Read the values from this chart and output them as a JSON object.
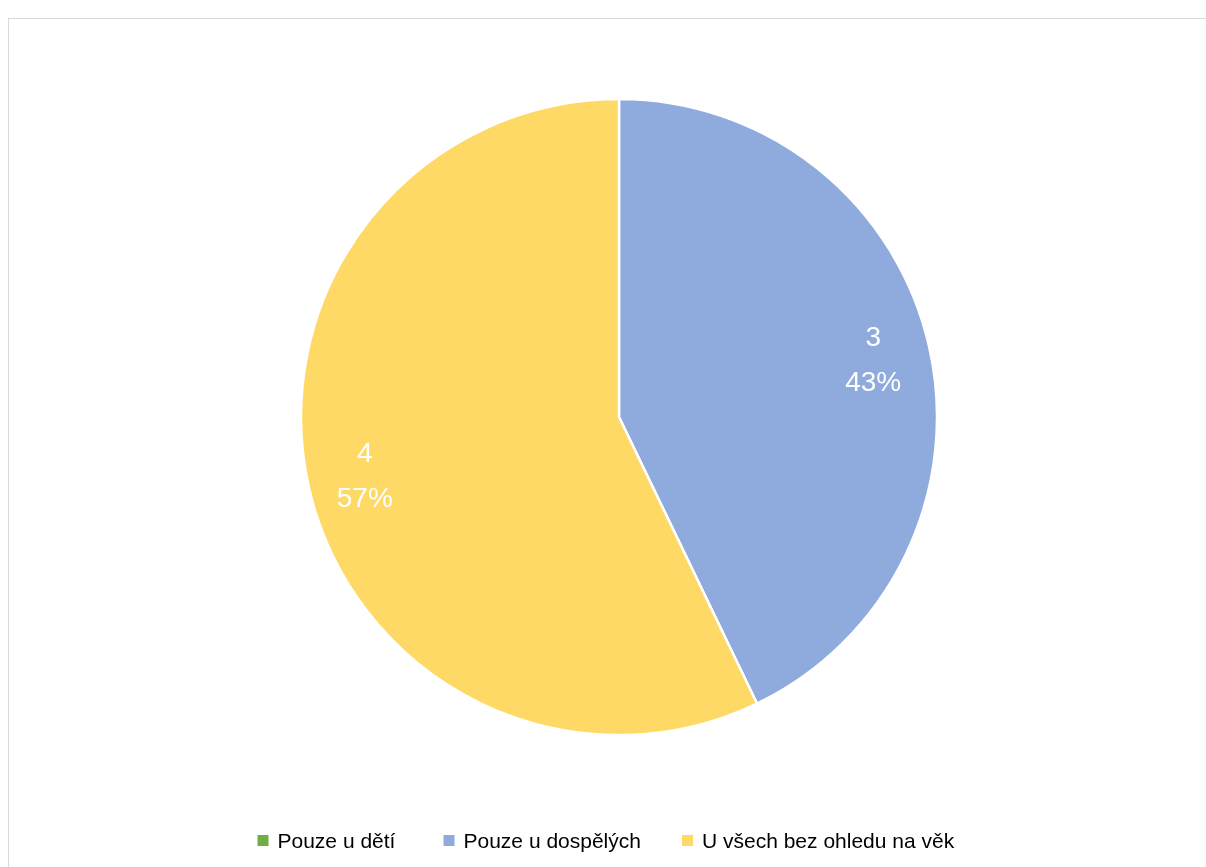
{
  "chart_data": {
    "type": "pie",
    "categories": [
      "Pouze u dětí",
      "Pouze u dospělých",
      "U všech bez ohledu na věk"
    ],
    "values": [
      0,
      3,
      4
    ],
    "colors": [
      "#70ad47",
      "#8faadc",
      "#ffd966"
    ],
    "value_labels": [
      null,
      "3\n43%",
      "4\n57%"
    ],
    "legend": "bottom"
  }
}
